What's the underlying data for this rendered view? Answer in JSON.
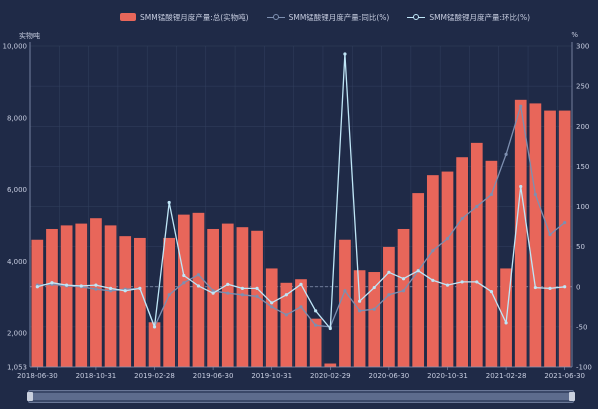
{
  "legend": {
    "bar_label": "SMM锰酸锂月度产量:总(实物吨)",
    "yoy_label": "SMM锰酸锂月度产量:同比(%)",
    "mom_label": "SMM锰酸锂月度产量:环比(%)"
  },
  "axes": {
    "left_unit": "实物吨",
    "right_unit": "%"
  },
  "colors": {
    "bar": "#e8665a",
    "yoy": "#7d8fb0",
    "mom": "#bfe6f7",
    "axis_text": "#c7cde0",
    "grid": "#33405f"
  },
  "chart_data": {
    "type": "bar",
    "categories": [
      "2018-06-30",
      "2018-07-31",
      "2018-08-31",
      "2018-09-30",
      "2018-10-31",
      "2018-11-30",
      "2018-12-31",
      "2019-01-31",
      "2019-02-28",
      "2019-03-31",
      "2019-04-30",
      "2019-05-31",
      "2019-06-30",
      "2019-07-31",
      "2019-08-31",
      "2019-09-30",
      "2019-10-31",
      "2019-11-30",
      "2019-12-31",
      "2020-01-31",
      "2020-02-29",
      "2020-03-31",
      "2020-04-30",
      "2020-05-31",
      "2020-06-30",
      "2020-07-31",
      "2020-08-31",
      "2020-09-30",
      "2020-10-31",
      "2020-11-30",
      "2020-12-31",
      "2021-01-31",
      "2021-02-28",
      "2021-03-31",
      "2021-04-30",
      "2021-05-31",
      "2021-06-30"
    ],
    "tick_labels": [
      "2018-06-30",
      "2018-10-31",
      "2019-02-28",
      "2019-06-30",
      "2019-10-31",
      "2020-02-29",
      "2020-06-30",
      "2020-10-31",
      "2021-02-28",
      "2021-06-30"
    ],
    "series": [
      {
        "name": "SMM锰酸锂月度产量:总(实物吨)",
        "type": "bar",
        "axis": "left",
        "values": [
          4600,
          4900,
          5000,
          5050,
          5200,
          5000,
          4700,
          4650,
          2300,
          4650,
          5300,
          5350,
          4900,
          5050,
          4950,
          4850,
          3800,
          3400,
          3500,
          2400,
          1150,
          4600,
          3750,
          3700,
          4400,
          4900,
          5900,
          6400,
          6500,
          6900,
          7300,
          6800,
          3800,
          8500,
          8400,
          8200,
          8200
        ]
      },
      {
        "name": "SMM锰酸锂月度产量:同比(%)",
        "type": "line",
        "axis": "right",
        "values": [
          2,
          3,
          1,
          0,
          -3,
          -5,
          -3,
          -2,
          -50,
          -10,
          5,
          15,
          -5,
          -8,
          -10,
          -12,
          -25,
          -35,
          -25,
          -48,
          -50,
          -5,
          -30,
          -28,
          -10,
          -5,
          20,
          45,
          60,
          85,
          100,
          115,
          165,
          225,
          115,
          65,
          80
        ]
      },
      {
        "name": "SMM锰酸锂月度产量:环比(%)",
        "type": "line",
        "axis": "right",
        "values": [
          0,
          5,
          2,
          1,
          2,
          -2,
          -5,
          -2,
          -50,
          105,
          14,
          1,
          -8,
          3,
          -2,
          -2,
          -20,
          -10,
          3,
          -30,
          -52,
          290,
          -18,
          -1,
          18,
          10,
          20,
          8,
          2,
          6,
          6,
          -6,
          -45,
          125,
          -1,
          -2,
          0
        ]
      }
    ],
    "ylim_left": [
      1053,
      10000
    ],
    "yticks_left": [
      1053,
      2000,
      4000,
      6000,
      8000,
      10000
    ],
    "ylim_right": [
      -100,
      300
    ],
    "yticks_right": [
      -100,
      -50,
      0,
      50,
      100,
      150,
      200,
      250,
      300
    ],
    "grid": true,
    "legend_position": "top"
  }
}
